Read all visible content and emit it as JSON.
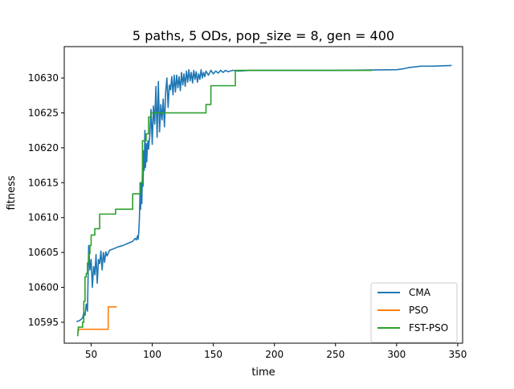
{
  "chart_data": {
    "type": "line",
    "title": "5 paths, 5 ODs, pop_size = 8, gen = 400",
    "xlabel": "time",
    "ylabel": "fitness",
    "xlim": [
      28,
      354
    ],
    "ylim": [
      10592.0,
      10634.5
    ],
    "xticks": [
      50,
      100,
      150,
      200,
      250,
      300,
      350
    ],
    "yticks": [
      10595,
      10600,
      10605,
      10610,
      10615,
      10620,
      10625,
      10630
    ],
    "legend": {
      "position": "lower-right"
    },
    "series": [
      {
        "name": "CMA",
        "color": "#1f77b4",
        "points": [
          [
            38,
            10595.1
          ],
          [
            40,
            10595.2
          ],
          [
            41,
            10595.3
          ],
          [
            43,
            10595.6
          ],
          [
            44,
            10596.4
          ],
          [
            45,
            10596.0
          ],
          [
            46,
            10597.6
          ],
          [
            47,
            10596.6
          ],
          [
            48,
            10606.0
          ],
          [
            49,
            10602.5
          ],
          [
            50,
            10604.0
          ],
          [
            51,
            10600.0
          ],
          [
            52,
            10603.0
          ],
          [
            53,
            10601.8
          ],
          [
            54,
            10604.7
          ],
          [
            55,
            10600.6
          ],
          [
            56,
            10604.0
          ],
          [
            57,
            10603.4
          ],
          [
            58,
            10605.2
          ],
          [
            59,
            10602.5
          ],
          [
            60,
            10605.0
          ],
          [
            61,
            10603.6
          ],
          [
            62,
            10605.1
          ],
          [
            63,
            10604.5
          ],
          [
            65,
            10605.3
          ],
          [
            68,
            10605.5
          ],
          [
            72,
            10605.8
          ],
          [
            76,
            10606.0
          ],
          [
            80,
            10606.3
          ],
          [
            84,
            10606.6
          ],
          [
            86,
            10607.0
          ],
          [
            87,
            10606.8
          ],
          [
            88,
            10607.4
          ],
          [
            88.5,
            10606.9
          ],
          [
            89,
            10608.0
          ],
          [
            89.5,
            10609.8
          ],
          [
            90,
            10613.5
          ],
          [
            90.5,
            10611.2
          ],
          [
            91,
            10615.0
          ],
          [
            91.5,
            10612.0
          ],
          [
            92,
            10617.0
          ],
          [
            92.5,
            10614.5
          ],
          [
            93,
            10619.6
          ],
          [
            93.5,
            10616.8
          ],
          [
            94,
            10622.5
          ],
          [
            94.5,
            10617.2
          ],
          [
            95,
            10620.6
          ],
          [
            95.5,
            10618.0
          ],
          [
            96,
            10620.2
          ],
          [
            96.5,
            10621.0
          ],
          [
            97,
            10619.8
          ],
          [
            98,
            10621.8
          ],
          [
            99,
            10625.5
          ],
          [
            100,
            10620.5
          ],
          [
            101,
            10626.0
          ],
          [
            102,
            10623.4
          ],
          [
            103,
            10628.8
          ],
          [
            104,
            10621.5
          ],
          [
            105,
            10629.5
          ],
          [
            106,
            10622.3
          ],
          [
            107,
            10626.2
          ],
          [
            108,
            10624.0
          ],
          [
            109,
            10627.0
          ],
          [
            110,
            10623.0
          ],
          [
            111,
            10628.0
          ],
          [
            112,
            10630.0
          ],
          [
            113,
            10625.8
          ],
          [
            114,
            10629.0
          ],
          [
            115,
            10628.3
          ],
          [
            116,
            10630.2
          ],
          [
            117,
            10627.6
          ],
          [
            118,
            10630.4
          ],
          [
            119,
            10628.0
          ],
          [
            120,
            10630.4
          ],
          [
            121,
            10628.6
          ],
          [
            122,
            10630.2
          ],
          [
            123,
            10628.2
          ],
          [
            124,
            10630.8
          ],
          [
            125,
            10629.0
          ],
          [
            126,
            10630.6
          ],
          [
            127,
            10628.8
          ],
          [
            128,
            10631.0
          ],
          [
            129,
            10629.4
          ],
          [
            130,
            10631.2
          ],
          [
            131,
            10629.6
          ],
          [
            132,
            10630.8
          ],
          [
            133,
            10629.3
          ],
          [
            134,
            10631.1
          ],
          [
            135,
            10629.8
          ],
          [
            136,
            10630.9
          ],
          [
            137,
            10629.4
          ],
          [
            138,
            10630.6
          ],
          [
            139,
            10629.8
          ],
          [
            140,
            10631.2
          ],
          [
            141,
            10630.0
          ],
          [
            142,
            10630.8
          ],
          [
            143,
            10630.2
          ],
          [
            144,
            10631.0
          ],
          [
            146,
            10630.4
          ],
          [
            148,
            10631.1
          ],
          [
            150,
            10630.6
          ],
          [
            152,
            10631.0
          ],
          [
            154,
            10630.7
          ],
          [
            156,
            10631.1
          ],
          [
            158,
            10630.8
          ],
          [
            160,
            10631.1
          ],
          [
            162,
            10630.9
          ],
          [
            166,
            10631.1
          ],
          [
            170,
            10631.0
          ],
          [
            180,
            10631.1
          ],
          [
            200,
            10631.1
          ],
          [
            220,
            10631.1
          ],
          [
            250,
            10631.1
          ],
          [
            280,
            10631.15
          ],
          [
            300,
            10631.2
          ],
          [
            305,
            10631.3
          ],
          [
            310,
            10631.5
          ],
          [
            315,
            10631.6
          ],
          [
            320,
            10631.7
          ],
          [
            330,
            10631.7
          ],
          [
            345,
            10631.8
          ]
        ]
      },
      {
        "name": "PSO",
        "color": "#ff7f0e",
        "points": [
          [
            39,
            10593.5
          ],
          [
            40,
            10594.0
          ],
          [
            50,
            10594.0
          ],
          [
            60,
            10594.0
          ],
          [
            64,
            10594.0
          ],
          [
            64,
            10597.2
          ],
          [
            71,
            10597.2
          ]
        ]
      },
      {
        "name": "FST-PSO",
        "color": "#2ca02c",
        "points": [
          [
            39,
            10593.0
          ],
          [
            39.5,
            10594.3
          ],
          [
            43,
            10594.3
          ],
          [
            43,
            10595.0
          ],
          [
            44,
            10595.0
          ],
          [
            44,
            10598.0
          ],
          [
            45,
            10598.0
          ],
          [
            45,
            10601.5
          ],
          [
            46,
            10601.5
          ],
          [
            46,
            10602.0
          ],
          [
            47,
            10602.0
          ],
          [
            47,
            10603.5
          ],
          [
            48,
            10603.5
          ],
          [
            48,
            10604.8
          ],
          [
            49,
            10604.8
          ],
          [
            49,
            10606.0
          ],
          [
            50,
            10606.0
          ],
          [
            50,
            10607.5
          ],
          [
            53,
            10607.5
          ],
          [
            53,
            10608.4
          ],
          [
            57,
            10608.4
          ],
          [
            57,
            10610.5
          ],
          [
            70,
            10610.5
          ],
          [
            70,
            10611.2
          ],
          [
            84,
            10611.2
          ],
          [
            84,
            10613.4
          ],
          [
            90,
            10613.4
          ],
          [
            90,
            10615.0
          ],
          [
            92,
            10615.0
          ],
          [
            92,
            10621.0
          ],
          [
            95,
            10621.0
          ],
          [
            95,
            10622.0
          ],
          [
            97,
            10622.0
          ],
          [
            97,
            10624.4
          ],
          [
            99,
            10624.4
          ],
          [
            99,
            10625.0
          ],
          [
            144,
            10625.0
          ],
          [
            144,
            10626.2
          ],
          [
            148,
            10626.2
          ],
          [
            148,
            10628.9
          ],
          [
            168,
            10628.9
          ],
          [
            168,
            10631.1
          ],
          [
            280,
            10631.1
          ]
        ]
      }
    ]
  }
}
